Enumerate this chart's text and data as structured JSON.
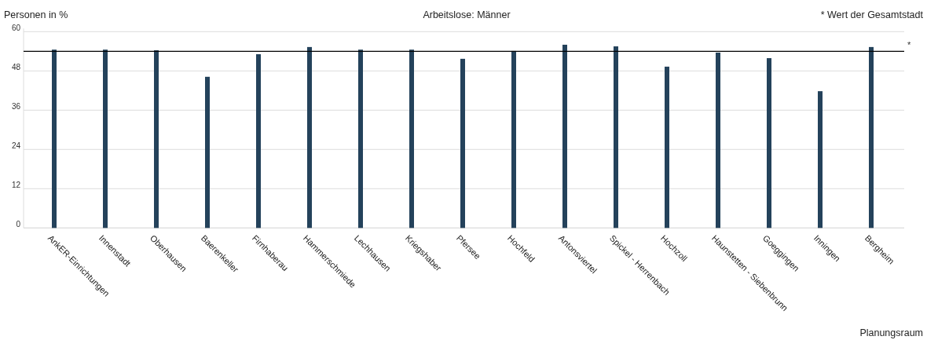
{
  "chart_data": {
    "type": "bar",
    "title": "Arbeitslose: Männer",
    "ylabel": "Personen in %",
    "xlabel": "Planungsraum",
    "annotations": [
      "* Wert der Gesamtstadt"
    ],
    "categories": [
      "AnkER-Einrichtungen",
      "Innenstadt",
      "Oberhausen",
      "Baerenkeller",
      "Firnhaberau",
      "Hammerschmiede",
      "Lechhausen",
      "Kriegshaber",
      "Pfersee",
      "Hochfeld",
      "Antonsviertel",
      "Spickel - Herrenbach",
      "Hochzoll",
      "Haunstetten - Siebenbrunn",
      "Goeggingen",
      "Inningen",
      "Bergheim"
    ],
    "values": [
      54.5,
      54.5,
      54.3,
      46.2,
      53.1,
      55.3,
      54.5,
      54.5,
      51.7,
      54.1,
      56.0,
      55.5,
      49.3,
      53.6,
      51.9,
      41.8,
      55.3
    ],
    "color": "#24425b",
    "ylim": [
      0,
      60
    ],
    "yticks": [
      0,
      12,
      24,
      36,
      48,
      60
    ],
    "grid": "y",
    "ref_lines": [
      {
        "axis": "y",
        "value": 54,
        "label": "*",
        "color": "#000000"
      }
    ]
  }
}
